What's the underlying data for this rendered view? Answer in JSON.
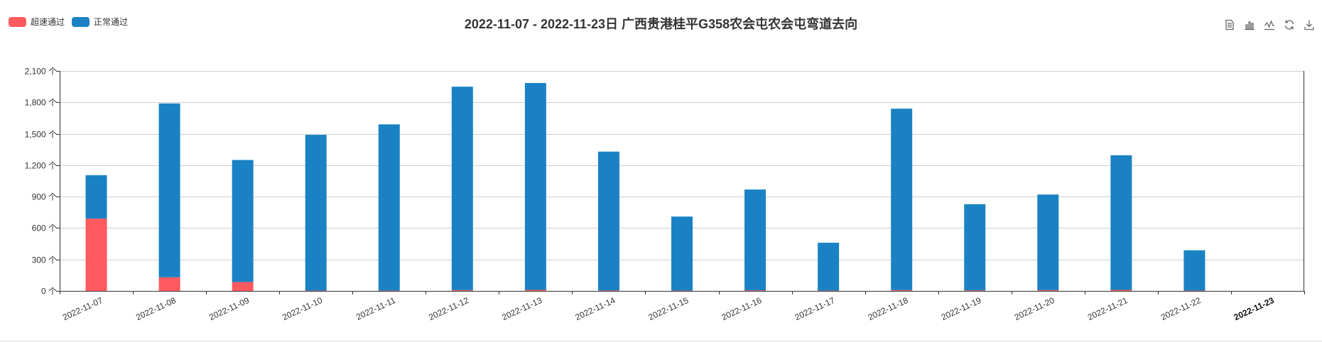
{
  "title": "2022-11-07 - 2022-11-23日 广西贵港桂平G358农会屯农会屯弯道去向",
  "legend": [
    {
      "name": "超速通过",
      "color": "#ff5a5f"
    },
    {
      "name": "正常通过",
      "color": "#1a82c4"
    }
  ],
  "toolbox": [
    {
      "icon": "data-view-icon"
    },
    {
      "icon": "bar-chart-icon"
    },
    {
      "icon": "line-chart-icon"
    },
    {
      "icon": "refresh-icon"
    },
    {
      "icon": "download-icon"
    }
  ],
  "chart_data": {
    "type": "bar",
    "stacked": true,
    "title": "2022-11-07 - 2022-11-23日 广西贵港桂平G358农会屯农会屯弯道去向",
    "categories": [
      "2022-11-07",
      "2022-11-08",
      "2022-11-09",
      "2022-11-10",
      "2022-11-11",
      "2022-11-12",
      "2022-11-13",
      "2022-11-14",
      "2022-11-15",
      "2022-11-16",
      "2022-11-17",
      "2022-11-18",
      "2022-11-19",
      "2022-11-20",
      "2022-11-21",
      "2022-11-22",
      "2022-11-23"
    ],
    "series": [
      {
        "name": "超速通过",
        "color": "#ff5a5f",
        "values": [
          690,
          130,
          85,
          3,
          3,
          8,
          10,
          5,
          3,
          6,
          3,
          8,
          6,
          8,
          10,
          3,
          0
        ]
      },
      {
        "name": "正常通过",
        "color": "#1a82c4",
        "values": [
          415,
          1660,
          1165,
          1487,
          1587,
          1942,
          1975,
          1325,
          707,
          962,
          457,
          1732,
          822,
          912,
          1285,
          385,
          0
        ]
      }
    ],
    "yticks": [
      "0 个",
      "300 个",
      "600 个",
      "900 个",
      "1,200 个",
      "1,500 个",
      "1,800 个",
      "2,100 个"
    ],
    "ylim": [
      0,
      2100
    ],
    "grid": true,
    "legend_position": "top-left",
    "highlighted_category": "2022-11-23"
  }
}
